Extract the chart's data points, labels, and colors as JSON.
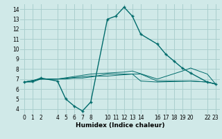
{
  "xlabel": "Humidex (Indice chaleur)",
  "bg_color": "#d0e9e8",
  "grid_color": "#aacfce",
  "line_color": "#006b6b",
  "xlim": [
    -0.5,
    23.5
  ],
  "ylim": [
    3.5,
    14.5
  ],
  "xticks": [
    0,
    1,
    2,
    4,
    5,
    6,
    7,
    8,
    10,
    11,
    12,
    13,
    14,
    16,
    17,
    18,
    19,
    20,
    22,
    23
  ],
  "yticks": [
    4,
    5,
    6,
    7,
    8,
    9,
    10,
    11,
    12,
    13,
    14
  ],
  "series1": [
    [
      0,
      6.7
    ],
    [
      1,
      6.8
    ],
    [
      2,
      7.1
    ],
    [
      4,
      6.8
    ],
    [
      5,
      5.0
    ],
    [
      6,
      4.3
    ],
    [
      7,
      3.8
    ],
    [
      8,
      4.7
    ],
    [
      10,
      13.0
    ],
    [
      11,
      13.3
    ],
    [
      12,
      14.2
    ],
    [
      13,
      13.3
    ],
    [
      14,
      11.5
    ],
    [
      16,
      10.5
    ],
    [
      17,
      9.5
    ],
    [
      18,
      8.8
    ],
    [
      19,
      8.1
    ],
    [
      20,
      7.6
    ],
    [
      22,
      6.7
    ],
    [
      23,
      6.5
    ]
  ],
  "series2": [
    [
      0,
      6.7
    ],
    [
      1,
      6.7
    ],
    [
      2,
      7.0
    ],
    [
      4,
      7.0
    ],
    [
      5,
      7.0
    ],
    [
      6,
      7.1
    ],
    [
      7,
      7.1
    ],
    [
      8,
      7.2
    ],
    [
      10,
      7.5
    ],
    [
      11,
      7.5
    ],
    [
      12,
      7.5
    ],
    [
      13,
      7.5
    ],
    [
      14,
      7.5
    ],
    [
      16,
      6.8
    ],
    [
      17,
      6.8
    ],
    [
      18,
      6.8
    ],
    [
      19,
      6.8
    ],
    [
      20,
      6.8
    ],
    [
      22,
      6.7
    ],
    [
      23,
      6.5
    ]
  ],
  "series3": [
    [
      0,
      6.7
    ],
    [
      2,
      7.0
    ],
    [
      4,
      7.0
    ],
    [
      8,
      7.5
    ],
    [
      10,
      7.6
    ],
    [
      12,
      7.7
    ],
    [
      13,
      7.8
    ],
    [
      16,
      7.0
    ],
    [
      19,
      7.8
    ],
    [
      20,
      8.1
    ],
    [
      22,
      7.5
    ],
    [
      23,
      6.5
    ]
  ],
  "series4": [
    [
      0,
      6.7
    ],
    [
      2,
      7.0
    ],
    [
      4,
      7.0
    ],
    [
      8,
      7.3
    ],
    [
      10,
      7.3
    ],
    [
      13,
      7.5
    ],
    [
      14,
      6.8
    ],
    [
      16,
      6.7
    ],
    [
      20,
      6.8
    ],
    [
      22,
      6.7
    ],
    [
      23,
      6.5
    ]
  ]
}
